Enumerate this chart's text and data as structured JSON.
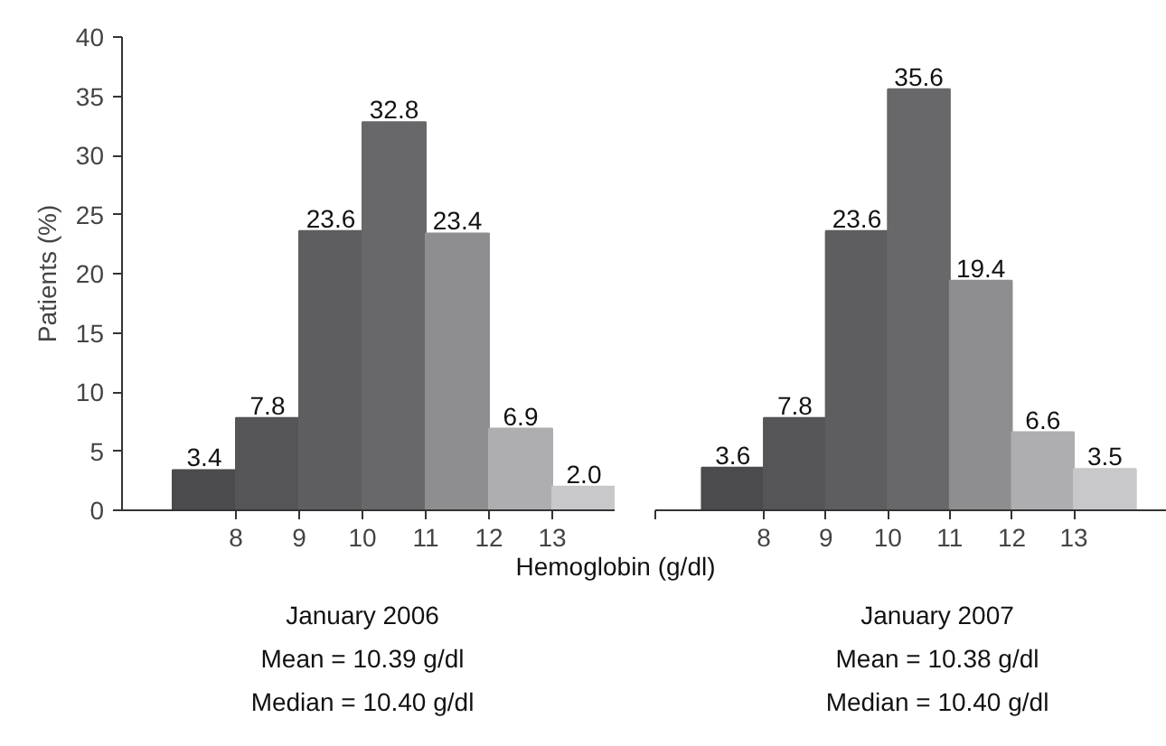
{
  "chart_data": [
    {
      "type": "histogram",
      "xlabel": "Hemoglobin (g/dl)",
      "ylabel": "Patients (%)",
      "bins": [
        7,
        8,
        9,
        10,
        11,
        12,
        13,
        14
      ],
      "values": [
        3.4,
        7.8,
        23.6,
        32.8,
        23.4,
        6.9,
        2.0
      ],
      "colors": [
        "#4b4b4d",
        "#555557",
        "#5e5e60",
        "#68686a",
        "#8e8e90",
        "#aeaeb0",
        "#c8c8ca"
      ],
      "xlim": [
        6.2,
        14
      ],
      "xticks": [
        8,
        9,
        10,
        11,
        12,
        13
      ],
      "ylim": [
        0,
        40
      ],
      "yticks": [
        0,
        5,
        10,
        15,
        20,
        25,
        30,
        35,
        40
      ],
      "value_labels": [
        "3.4",
        "7.8",
        "23.6",
        "32.8",
        "23.4",
        "6.9",
        "2.0"
      ],
      "grid": false,
      "annotations": [
        "January 2006",
        "Mean = 10.39 g/dl",
        "Median = 10.40 g/dl"
      ]
    },
    {
      "type": "histogram",
      "bins": [
        7,
        8,
        9,
        10,
        11,
        12,
        13,
        14
      ],
      "values": [
        3.6,
        7.8,
        23.6,
        35.6,
        19.4,
        6.6,
        3.5
      ],
      "colors": [
        "#4b4b4d",
        "#555557",
        "#5e5e60",
        "#68686a",
        "#8e8e90",
        "#aeaeb0",
        "#c8c8ca"
      ],
      "xlim": [
        6.25,
        14.5
      ],
      "xticks": [
        {
          "value": 6.25,
          "label": null
        },
        8,
        9,
        10,
        11,
        12,
        13
      ],
      "ylim": [
        0,
        40
      ],
      "tick_labels": "x",
      "value_labels": [
        "3.6",
        "7.8",
        "23.6",
        "35.6",
        "19.4",
        "6.6",
        "3.5"
      ],
      "grid": false,
      "annotations": [
        "January 2007",
        "Mean = 10.38 g/dl",
        "Median = 10.40 g/dl"
      ]
    }
  ]
}
